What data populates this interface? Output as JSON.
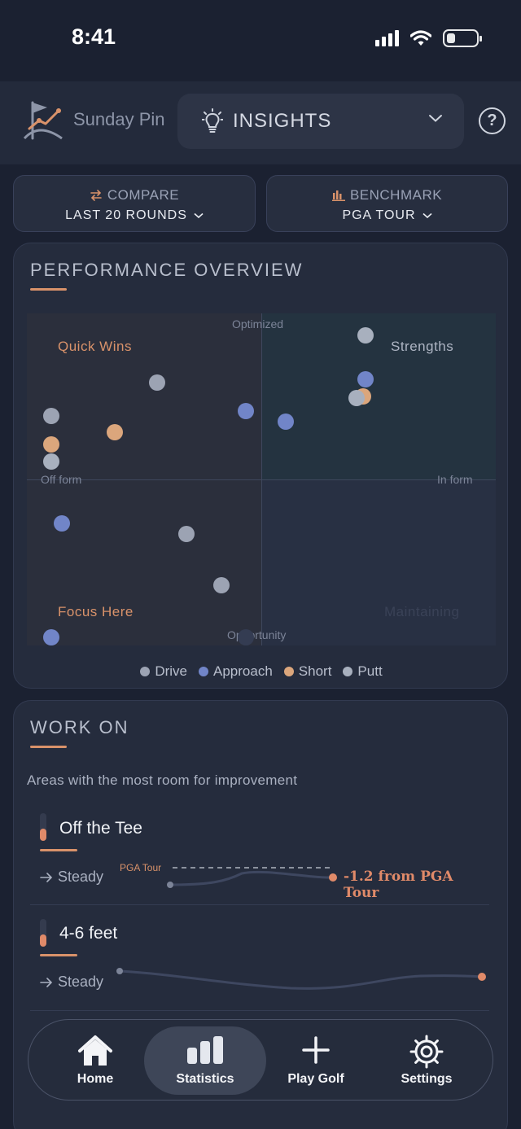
{
  "status_bar": {
    "time": "8:41"
  },
  "header": {
    "logo_text": "Sunday Pin",
    "view_select": {
      "label": "INSIGHTS"
    }
  },
  "filters": {
    "compare": {
      "caption": "COMPARE",
      "value": "LAST 20 ROUNDS"
    },
    "benchmark": {
      "caption": "BENCHMARK",
      "value": "PGA TOUR"
    }
  },
  "overview": {
    "title": "PERFORMANCE OVERVIEW",
    "axis_labels": {
      "top": "Optimized",
      "bottom": "Opportunity",
      "left": "Off form",
      "right": "In form"
    },
    "quadrants": {
      "top_left": "Quick Wins",
      "top_right": "Strengths",
      "bottom_left": "Focus Here",
      "bottom_right": "Maintaining"
    },
    "colors": {
      "drive": "#9ca3b3",
      "approach": "#7185c8",
      "short": "#dba67c",
      "putt": "#a8b0be",
      "accent": "#e08a69"
    },
    "legend": [
      "Drive",
      "Approach",
      "Short",
      "Putt"
    ],
    "points": [
      {
        "cat": "putt",
        "form": 0.47,
        "opt": 0.95
      },
      {
        "cat": "approach",
        "form": 0.47,
        "opt": 0.66
      },
      {
        "cat": "short",
        "form": 0.46,
        "opt": 0.55
      },
      {
        "cat": "putt",
        "form": 0.43,
        "opt": 0.54
      },
      {
        "cat": "approach",
        "form": 0.11,
        "opt": 0.38
      },
      {
        "cat": "approach",
        "form": -0.07,
        "opt": 0.45
      },
      {
        "cat": "drive",
        "form": -0.47,
        "opt": 0.64
      },
      {
        "cat": "short",
        "form": -0.66,
        "opt": 0.31
      },
      {
        "cat": "drive",
        "form": -0.95,
        "opt": 0.42
      },
      {
        "cat": "short",
        "form": -0.95,
        "opt": 0.23
      },
      {
        "cat": "putt",
        "form": -0.95,
        "opt": 0.12
      },
      {
        "cat": "approach",
        "form": -0.9,
        "opt": -0.29
      },
      {
        "cat": "drive",
        "form": -0.34,
        "opt": -0.36
      },
      {
        "cat": "drive",
        "form": -0.18,
        "opt": -0.7
      },
      {
        "cat": "drive",
        "form": -0.07,
        "opt": -1.17
      },
      {
        "cat": "approach",
        "form": -0.95,
        "opt": -1.88
      }
    ]
  },
  "work_on": {
    "title": "WORK ON",
    "subtitle": "Areas with the most room for improvement",
    "items": [
      {
        "name": "Off the Tee",
        "trend": "Steady",
        "benchmark_label": "PGA Tour",
        "delta": "-1.2 from PGA Tour",
        "level": 0.45
      },
      {
        "name": "4-6 feet",
        "trend": "Steady",
        "level": 0.45
      }
    ]
  },
  "tabbar": {
    "tabs": [
      {
        "label": "Home",
        "icon": "home-icon"
      },
      {
        "label": "Statistics",
        "icon": "statistics-icon",
        "active": true
      },
      {
        "label": "Play Golf",
        "icon": "plus-icon"
      },
      {
        "label": "Settings",
        "icon": "gear-icon"
      }
    ]
  }
}
